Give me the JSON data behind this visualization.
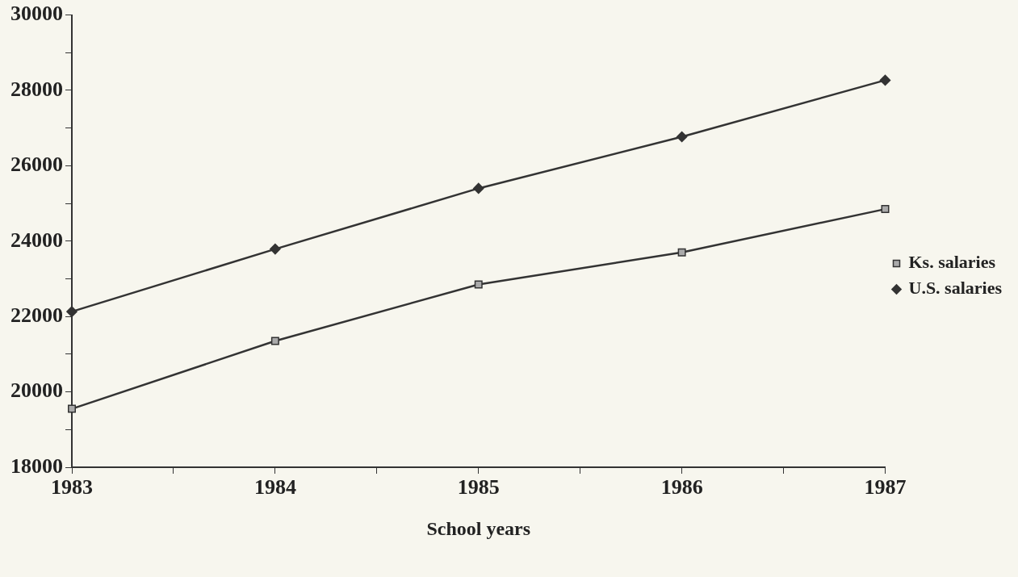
{
  "chart_data": {
    "type": "line",
    "xlabel": "School years",
    "x": [
      1983,
      1984,
      1985,
      1986,
      1987
    ],
    "xlim": [
      1983,
      1987
    ],
    "xticks": [
      1983,
      {
        "value": 1983.5,
        "label": null
      },
      1984,
      {
        "value": 1984.5,
        "label": null
      },
      1985,
      {
        "value": 1985.5,
        "label": null
      },
      1986,
      {
        "value": 1986.5,
        "label": null
      },
      1987
    ],
    "ylim": [
      18000,
      30000
    ],
    "yticks": [
      18000,
      {
        "value": 19000,
        "label": null
      },
      20000,
      {
        "value": 21000,
        "label": null
      },
      22000,
      {
        "value": 23000,
        "label": null
      },
      24000,
      {
        "value": 25000,
        "label": null
      },
      26000,
      {
        "value": 27000,
        "label": null
      },
      28000,
      {
        "value": 29000,
        "label": null
      },
      30000
    ],
    "series": [
      {
        "name": "Ks. salaries",
        "color": "#333333",
        "marker": "square",
        "values": [
          19550,
          21350,
          22850,
          23700,
          24850
        ]
      },
      {
        "name": "U.S. salaries",
        "color": "#333333",
        "marker": "diamond",
        "values": [
          22130,
          23790,
          25400,
          26770,
          28270
        ]
      }
    ],
    "grid": false,
    "legend": "right",
    "line_style": "solid"
  }
}
